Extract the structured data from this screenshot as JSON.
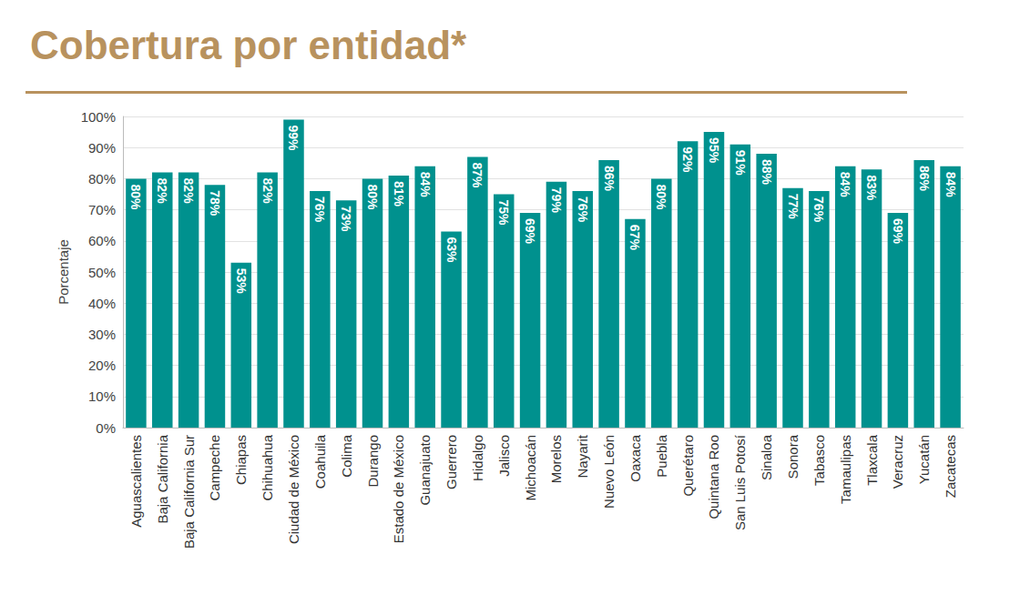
{
  "chart_data": {
    "type": "bar",
    "title": "Cobertura por entidad*",
    "y_label": "Porcentaje",
    "categories": [
      "Aguascalientes",
      "Baja California",
      "Baja California Sur",
      "Campeche",
      "Chiapas",
      "Chihuahua",
      "Ciudad de México",
      "Coahuila",
      "Colima",
      "Durango",
      "Estado de México",
      "Guanajuato",
      "Guerrero",
      "Hidalgo",
      "Jalisco",
      "Michoacán",
      "Morelos",
      "Nayarit",
      "Nuevo León",
      "Oaxaca",
      "Puebla",
      "Querétaro",
      "Quintana Roo",
      "San Luis Potosí",
      "Sinaloa",
      "Sonora",
      "Tabasco",
      "Tamaulipas",
      "Tlaxcala",
      "Veracruz",
      "Yucatán",
      "Zacatecas"
    ],
    "values": [
      80,
      82,
      82,
      78,
      53,
      82,
      99,
      76,
      73,
      80,
      81,
      84,
      63,
      87,
      75,
      69,
      79,
      76,
      86,
      67,
      80,
      92,
      95,
      91,
      88,
      77,
      76,
      84,
      83,
      69,
      86,
      84
    ],
    "value_labels": [
      "80%",
      "82%",
      "82%",
      "78%",
      "53%",
      "82%",
      "99%",
      "76%",
      "73%",
      "80%",
      "81%",
      "84%",
      "63%",
      "87%",
      "75%",
      "69%",
      "79%",
      "76%",
      "86%",
      "67%",
      "80%",
      "92%",
      "95%",
      "91%",
      "88%",
      "77%",
      "76%",
      "84%",
      "83%",
      "69%",
      "86%",
      "84%"
    ],
    "color": "#00918e",
    "ylim": [
      0,
      100
    ],
    "yticks": [
      {
        "value": 0,
        "label": "0%"
      },
      {
        "value": 10,
        "label": "10%"
      },
      {
        "value": 20,
        "label": "20%"
      },
      {
        "value": 30,
        "label": "30%"
      },
      {
        "value": 40,
        "label": "40%"
      },
      {
        "value": 50,
        "label": "50%"
      },
      {
        "value": 60,
        "label": "60%"
      },
      {
        "value": 70,
        "label": "70%"
      },
      {
        "value": 80,
        "label": "80%"
      },
      {
        "value": 90,
        "label": "90%"
      },
      {
        "value": 100,
        "label": "100%"
      }
    ],
    "grid": true,
    "data_labels": true
  }
}
